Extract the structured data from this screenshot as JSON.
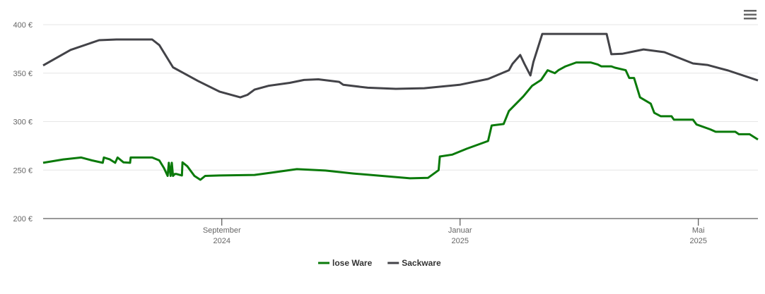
{
  "chart_data": {
    "type": "line",
    "xlim": [
      6,
      18
    ],
    "xticks": [
      {
        "value": 9,
        "label": "September",
        "year": "2024"
      },
      {
        "value": 13,
        "label": "Januar",
        "year": "2025"
      },
      {
        "value": 17,
        "label": "Mai",
        "year": "2025"
      }
    ],
    "ylim": [
      200,
      400
    ],
    "yticks": [
      {
        "value": 200,
        "label": "200 €"
      },
      {
        "value": 250,
        "label": "250 €"
      },
      {
        "value": 300,
        "label": "300 €"
      },
      {
        "value": 350,
        "label": "350 €"
      },
      {
        "value": 400,
        "label": "400 €"
      }
    ],
    "grid": true,
    "legend": "bottom",
    "series": [
      {
        "name": "lose Ware",
        "color": "#0a7a0a",
        "x": [
          6.0,
          6.34,
          6.64,
          6.82,
          7.0,
          7.02,
          7.12,
          7.21,
          7.25,
          7.35,
          7.46,
          7.47,
          7.83,
          7.95,
          8.03,
          8.09,
          8.11,
          8.14,
          8.16,
          8.18,
          8.21,
          8.24,
          8.33,
          8.34,
          8.42,
          8.54,
          8.64,
          8.72,
          8.96,
          9.55,
          9.79,
          10.26,
          10.74,
          11.21,
          11.69,
          12.16,
          12.46,
          12.64,
          12.66,
          12.87,
          13.11,
          13.47,
          13.53,
          13.73,
          13.82,
          14.06,
          14.21,
          14.36,
          14.47,
          14.59,
          14.65,
          14.77,
          14.95,
          15.19,
          15.31,
          15.37,
          15.54,
          15.6,
          15.78,
          15.84,
          15.92,
          16.02,
          16.2,
          16.26,
          16.37,
          16.55,
          16.59,
          16.91,
          16.97,
          17.2,
          17.29,
          17.62,
          17.68,
          17.86,
          18.0
        ],
        "values": [
          257.5,
          261,
          263,
          260,
          257.5,
          263,
          261,
          257.5,
          263,
          258,
          257.5,
          263,
          263,
          260,
          252,
          244,
          257.5,
          244,
          257.5,
          244,
          246,
          246,
          244.4,
          258,
          254,
          244,
          240,
          244,
          244.4,
          245,
          247,
          251,
          249.5,
          246.5,
          244,
          241.5,
          242,
          250,
          264,
          266,
          272,
          280,
          296,
          297.5,
          311,
          326,
          337,
          343,
          353,
          350,
          353,
          357,
          361,
          361,
          359,
          357,
          357,
          355.6,
          353,
          345,
          345,
          325,
          318.5,
          309,
          305.5,
          305.5,
          302,
          302,
          297,
          292,
          289.5,
          289.5,
          287,
          287,
          281.5
        ]
      },
      {
        "name": "Sackware",
        "color": "#434348",
        "x": [
          6.0,
          6.46,
          6.94,
          7.23,
          7.83,
          7.95,
          8.18,
          8.6,
          8.96,
          9.31,
          9.43,
          9.55,
          9.79,
          10.14,
          10.38,
          10.62,
          10.97,
          11.04,
          11.45,
          11.92,
          12.4,
          12.99,
          13.47,
          13.82,
          13.88,
          14.01,
          14.08,
          14.18,
          14.23,
          14.38,
          15.46,
          15.54,
          15.72,
          16.08,
          16.43,
          16.91,
          17.15,
          17.5,
          18.0
        ],
        "values": [
          358,
          374,
          384,
          384.7,
          384.7,
          379,
          356,
          342,
          331,
          325,
          327.6,
          333,
          337,
          340,
          343,
          343.6,
          341,
          338,
          335,
          333.8,
          334.5,
          338,
          344,
          353,
          359.6,
          368.7,
          359.6,
          347.6,
          361.5,
          390.5,
          390.5,
          369.5,
          370,
          374.5,
          371.6,
          360,
          358.5,
          352.7,
          342.5
        ]
      }
    ]
  }
}
